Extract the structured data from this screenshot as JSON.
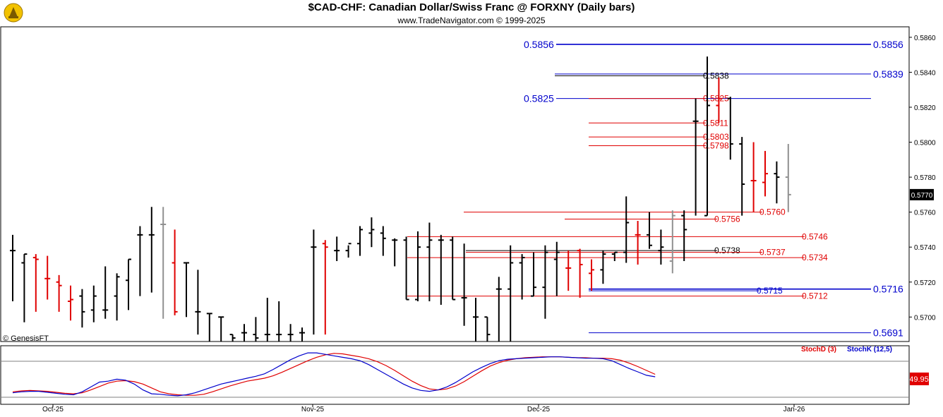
{
  "header": {
    "title": "$CAD-CHF:  Canadian Dollar/Swiss Franc @ FORXNY  (Daily bars)",
    "subtitle": "www.TradeNavigator.com © 1999-2025",
    "copyright": "© GenesisFT"
  },
  "colors": {
    "up": "#000000",
    "down": "#e00000",
    "neutral": "#909090",
    "blue": "#0000cc",
    "red_level": "#e00000",
    "stochD": "#e00000",
    "stochK": "#0000cc"
  },
  "chart_data": [
    {
      "type": "ohlc",
      "title": "$CAD-CHF:  Canadian Dollar/Swiss Franc @ FORXNY  (Daily bars)",
      "ylim": [
        0.5686,
        0.5866
      ],
      "y_ticks": [
        "0.5860",
        "0.5840",
        "0.5820",
        "0.5800",
        "0.5780",
        "0.5760",
        "0.5740",
        "0.5720",
        "0.5700"
      ],
      "x_ticks": [
        "Oct-25",
        "Nov-25",
        "Dec-25",
        "Jan-26"
      ],
      "last_price": "0.5770",
      "bars": [
        [
          0.5738,
          0.5747,
          0.5709,
          0.5738,
          "u"
        ],
        [
          0.5731,
          0.5736,
          0.5697,
          0.5736,
          "u"
        ],
        [
          0.5734,
          0.5736,
          0.5703,
          0.5733,
          "d"
        ],
        [
          0.5722,
          0.5735,
          0.571,
          0.5722,
          "d"
        ],
        [
          0.572,
          0.5724,
          0.5703,
          0.5718,
          "d"
        ],
        [
          0.5709,
          0.5718,
          0.5698,
          0.571,
          "d"
        ],
        [
          0.5712,
          0.5716,
          0.5694,
          0.5703,
          "u"
        ],
        [
          0.5704,
          0.5718,
          0.5697,
          0.5712,
          "u"
        ],
        [
          0.5704,
          0.5729,
          0.5699,
          0.5704,
          "u"
        ],
        [
          0.5712,
          0.5725,
          0.5698,
          0.5723,
          "u"
        ],
        [
          0.5721,
          0.5733,
          0.5704,
          0.5733,
          "u"
        ],
        [
          0.5747,
          0.5752,
          0.5712,
          0.5747,
          "u"
        ],
        [
          0.5747,
          0.5763,
          0.5714,
          0.5747,
          "u"
        ],
        [
          0.5753,
          0.5763,
          0.5699,
          0.5753,
          "n"
        ],
        [
          0.5731,
          0.575,
          0.5701,
          0.5703,
          "d"
        ],
        [
          0.5731,
          0.5731,
          0.57,
          0.5731,
          "u"
        ],
        [
          0.5703,
          0.5727,
          0.569,
          0.5703,
          "u"
        ],
        [
          0.5702,
          0.5702,
          0.568,
          0.5702,
          "u"
        ],
        [
          0.57,
          0.57,
          0.568,
          0.57,
          "u"
        ],
        [
          0.569,
          0.569,
          0.568,
          0.5688,
          "u"
        ],
        [
          0.5691,
          0.5696,
          0.568,
          0.5691,
          "u"
        ],
        [
          0.569,
          0.57,
          0.568,
          0.5688,
          "u"
        ],
        [
          0.569,
          0.5711,
          0.568,
          0.569,
          "u"
        ],
        [
          0.569,
          0.5709,
          0.568,
          0.569,
          "u"
        ],
        [
          0.569,
          0.5696,
          0.568,
          0.569,
          "u"
        ],
        [
          0.5691,
          0.5694,
          0.568,
          0.5691,
          "u"
        ],
        [
          0.574,
          0.575,
          0.569,
          0.574,
          "u"
        ],
        [
          0.5742,
          0.5744,
          0.569,
          0.574,
          "d"
        ],
        [
          0.5738,
          0.5746,
          0.5732,
          0.5738,
          "u"
        ],
        [
          0.5738,
          0.5741,
          0.5734,
          0.5742,
          "u"
        ],
        [
          0.5742,
          0.5752,
          0.5735,
          0.575,
          "u"
        ],
        [
          0.5748,
          0.5757,
          0.574,
          0.575,
          "u"
        ],
        [
          0.5748,
          0.5752,
          0.5735,
          0.5745,
          "u"
        ],
        [
          0.5744,
          0.5745,
          0.5729,
          0.5744,
          "u"
        ],
        [
          0.5744,
          0.5746,
          0.571,
          0.571,
          "u"
        ],
        [
          0.571,
          0.5749,
          0.5709,
          0.574,
          "u"
        ],
        [
          0.574,
          0.5754,
          0.5709,
          0.5744,
          "u"
        ],
        [
          0.5744,
          0.5747,
          0.5707,
          0.5744,
          "u"
        ],
        [
          0.5744,
          0.5746,
          0.571,
          0.571,
          "u"
        ],
        [
          0.5711,
          0.5742,
          0.5695,
          0.5711,
          "u"
        ],
        [
          0.57,
          0.5711,
          0.5685,
          0.57,
          "u"
        ],
        [
          0.57,
          0.57,
          0.568,
          0.569,
          "u"
        ],
        [
          0.5716,
          0.5723,
          0.5685,
          0.5716,
          "u"
        ],
        [
          0.5716,
          0.5741,
          0.5686,
          0.5731,
          "u"
        ],
        [
          0.5731,
          0.5736,
          0.571,
          0.5734,
          "u"
        ],
        [
          0.5712,
          0.5737,
          0.5712,
          0.5717,
          "u"
        ],
        [
          0.5717,
          0.5741,
          0.5699,
          0.5737,
          "u"
        ],
        [
          0.5733,
          0.5743,
          0.5712,
          0.5737,
          "u"
        ],
        [
          0.5728,
          0.5738,
          0.5715,
          0.5728,
          "d"
        ],
        [
          0.5738,
          0.5739,
          0.5711,
          0.573,
          "d"
        ],
        [
          0.5725,
          0.5733,
          0.5715,
          0.5727,
          "d"
        ],
        [
          0.5727,
          0.5738,
          0.5719,
          0.5736,
          "u"
        ],
        [
          0.5736,
          0.5737,
          0.5732,
          0.5737,
          "u"
        ],
        [
          0.5737,
          0.5769,
          0.5731,
          0.5754,
          "u"
        ],
        [
          0.5747,
          0.5755,
          0.573,
          0.5747,
          "d"
        ],
        [
          0.5747,
          0.576,
          0.5739,
          0.5741,
          "u"
        ],
        [
          0.5738,
          0.575,
          0.573,
          0.574,
          "u"
        ],
        [
          0.5732,
          0.5761,
          0.5725,
          0.5758,
          "n"
        ],
        [
          0.5758,
          0.5761,
          0.5732,
          0.575,
          "u"
        ],
        [
          0.5812,
          0.5825,
          0.5758,
          0.5812,
          "u"
        ],
        [
          0.5758,
          0.5849,
          0.5758,
          0.5821,
          "u"
        ],
        [
          0.5821,
          0.5837,
          0.5811,
          0.5825,
          "d"
        ],
        [
          0.5825,
          0.5826,
          0.579,
          0.5799,
          "u"
        ],
        [
          0.5799,
          0.5803,
          0.5758,
          0.5776,
          "u"
        ],
        [
          0.5778,
          0.58,
          0.576,
          0.5778,
          "d"
        ],
        [
          0.5777,
          0.5795,
          0.5769,
          0.5782,
          "d"
        ],
        [
          0.5782,
          0.5789,
          0.5765,
          0.578,
          "u"
        ],
        [
          0.578,
          0.5799,
          0.576,
          0.577,
          "n"
        ]
      ],
      "levels": [
        {
          "value": 0.5856,
          "label": "0.5856",
          "right_label": "0.5856",
          "color": "blue"
        },
        {
          "value": 0.5839,
          "label": "",
          "right_label": "0.5839",
          "color": "blue"
        },
        {
          "value": 0.5838,
          "label": "0.5838",
          "right_label": "",
          "color": "black"
        },
        {
          "value": 0.5825,
          "label": "0.5825",
          "right_label": "",
          "color": "blue",
          "left_label": "0.5825"
        },
        {
          "value": 0.5825,
          "label": "0.5825",
          "right_label": "",
          "color": "red"
        },
        {
          "value": 0.5811,
          "label": "0.5811",
          "right_label": "",
          "color": "red"
        },
        {
          "value": 0.5803,
          "label": "0.5803",
          "right_label": "",
          "color": "red"
        },
        {
          "value": 0.5798,
          "label": "0.5798",
          "right_label": "",
          "color": "red"
        },
        {
          "value": 0.576,
          "label": "0.5760",
          "right_label": "",
          "color": "red"
        },
        {
          "value": 0.5756,
          "label": "0.5756",
          "right_label": "",
          "color": "red"
        },
        {
          "value": 0.5746,
          "label": "0.5746",
          "right_label": "",
          "color": "red"
        },
        {
          "value": 0.5738,
          "label": "0.5738",
          "right_label": "",
          "color": "black"
        },
        {
          "value": 0.5737,
          "label": "0.5737",
          "right_label": "",
          "color": "red"
        },
        {
          "value": 0.5734,
          "label": "0.5734",
          "right_label": "",
          "color": "red"
        },
        {
          "value": 0.5716,
          "label": "",
          "right_label": "0.5716",
          "color": "blue"
        },
        {
          "value": 0.5715,
          "label": "0.5715",
          "right_label": "",
          "color": "blue"
        },
        {
          "value": 0.5712,
          "label": "0.5712",
          "right_label": "",
          "color": "red"
        },
        {
          "value": 0.5691,
          "label": "",
          "right_label": "0.5691",
          "color": "blue"
        }
      ]
    },
    {
      "type": "line",
      "legend": [
        "StochD (3)",
        "StochK (12,5)"
      ],
      "last_value": "49.95",
      "ylim": [
        0,
        100
      ],
      "series": [
        {
          "name": "StochD (3)",
          "values": [
            14,
            16,
            17,
            16,
            15,
            13,
            11,
            10,
            12,
            18,
            25,
            32,
            36,
            37,
            35,
            30,
            22,
            14,
            10,
            8,
            7,
            7,
            9,
            14,
            20,
            26,
            31,
            36,
            39,
            42,
            47,
            54,
            62,
            70,
            78,
            85,
            90,
            93,
            92,
            89,
            86,
            82,
            76,
            68,
            58,
            47,
            36,
            27,
            20,
            18,
            20,
            26,
            35,
            46,
            57,
            67,
            74,
            79,
            82,
            84,
            85,
            86,
            86,
            86,
            85,
            84,
            84,
            83,
            83,
            82,
            79,
            73,
            66,
            58,
            50
          ]
        },
        {
          "name": "StochK (12,5)",
          "values": [
            12,
            14,
            15,
            15,
            13,
            11,
            9,
            8,
            14,
            24,
            34,
            36,
            40,
            38,
            30,
            18,
            10,
            9,
            7,
            6,
            8,
            12,
            18,
            24,
            30,
            34,
            38,
            42,
            46,
            51,
            60,
            70,
            80,
            88,
            94,
            94,
            91,
            88,
            85,
            82,
            78,
            70,
            60,
            50,
            40,
            30,
            22,
            17,
            15,
            18,
            24,
            33,
            44,
            55,
            64,
            72,
            78,
            81,
            82,
            83,
            84,
            85,
            86,
            86,
            85,
            84,
            83,
            83,
            82,
            78,
            70,
            62,
            55,
            48,
            45
          ]
        }
      ]
    }
  ]
}
